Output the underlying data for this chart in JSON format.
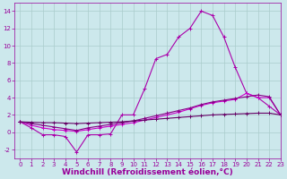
{
  "series": [
    {
      "x": [
        0,
        1,
        2,
        3,
        4,
        5,
        6,
        7,
        8,
        9,
        10,
        11,
        12,
        13,
        14,
        15,
        16,
        17,
        18,
        19,
        20,
        21,
        22,
        23
      ],
      "y": [
        1.2,
        0.5,
        -0.3,
        -0.3,
        -0.5,
        -2.3,
        -0.3,
        -0.3,
        -0.2,
        2.0,
        2.0,
        5.0,
        8.5,
        9.0,
        11.0,
        12.0,
        14.0,
        13.5,
        11.0,
        7.5,
        4.5,
        4.0,
        3.0,
        2.0
      ],
      "color": "#aa00aa",
      "linewidth": 0.8,
      "marker": "+"
    },
    {
      "x": [
        0,
        1,
        2,
        3,
        4,
        5,
        6,
        7,
        8,
        9,
        10,
        11,
        12,
        13,
        14,
        15,
        16,
        17,
        18,
        19,
        20,
        21,
        22,
        23
      ],
      "y": [
        1.2,
        0.8,
        0.5,
        0.3,
        0.2,
        0.1,
        0.3,
        0.5,
        0.7,
        0.9,
        1.1,
        1.4,
        1.7,
        2.0,
        2.3,
        2.7,
        3.1,
        3.4,
        3.6,
        3.8,
        4.5,
        4.0,
        4.0,
        2.0
      ],
      "color": "#cc00cc",
      "linewidth": 0.8,
      "marker": "+"
    },
    {
      "x": [
        0,
        1,
        2,
        3,
        4,
        5,
        6,
        7,
        8,
        9,
        10,
        11,
        12,
        13,
        14,
        15,
        16,
        17,
        18,
        19,
        20,
        21,
        22,
        23
      ],
      "y": [
        1.2,
        1.0,
        0.8,
        0.6,
        0.4,
        0.2,
        0.5,
        0.7,
        0.9,
        1.1,
        1.3,
        1.6,
        1.9,
        2.2,
        2.5,
        2.8,
        3.2,
        3.5,
        3.7,
        3.9,
        4.1,
        4.3,
        4.1,
        2.0
      ],
      "color": "#880088",
      "linewidth": 0.8,
      "marker": "+"
    },
    {
      "x": [
        0,
        1,
        2,
        3,
        4,
        5,
        6,
        7,
        8,
        9,
        10,
        11,
        12,
        13,
        14,
        15,
        16,
        17,
        18,
        19,
        20,
        21,
        22,
        23
      ],
      "y": [
        1.2,
        1.15,
        1.1,
        1.1,
        1.05,
        1.0,
        1.05,
        1.1,
        1.15,
        1.2,
        1.3,
        1.4,
        1.5,
        1.6,
        1.7,
        1.8,
        1.9,
        2.0,
        2.05,
        2.1,
        2.15,
        2.2,
        2.2,
        2.0
      ],
      "color": "#660066",
      "linewidth": 0.8,
      "marker": "+"
    }
  ],
  "xlim": [
    -0.5,
    23
  ],
  "ylim": [
    -3,
    15
  ],
  "xticks": [
    0,
    1,
    2,
    3,
    4,
    5,
    6,
    7,
    8,
    9,
    10,
    11,
    12,
    13,
    14,
    15,
    16,
    17,
    18,
    19,
    20,
    21,
    22,
    23
  ],
  "yticks": [
    -2,
    0,
    2,
    4,
    6,
    8,
    10,
    12,
    14
  ],
  "xlabel": "Windchill (Refroidissement éolien,°C)",
  "background_color": "#cce8ec",
  "grid_color": "#aacccc",
  "line_color": "#990099",
  "tick_fontsize": 5,
  "xlabel_fontsize": 6.5
}
